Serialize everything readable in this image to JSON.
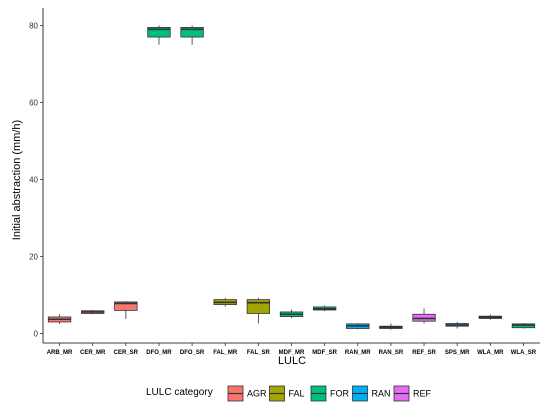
{
  "chart_data": {
    "type": "box",
    "xlabel": "LULC",
    "ylabel": "Initial abstraction (mm/h)",
    "ylim": [
      -3,
      84
    ],
    "y_ticks": [
      0,
      20,
      40,
      60,
      80
    ],
    "grid": false,
    "legend": {
      "title": "LULC category",
      "placement": "bottom",
      "entries": [
        {
          "name": "AGR",
          "color": "#F8766D"
        },
        {
          "name": "FAL",
          "color": "#A3A500"
        },
        {
          "name": "FOR",
          "color": "#00BF7D"
        },
        {
          "name": "RAN",
          "color": "#00B0F6"
        },
        {
          "name": "REF",
          "color": "#E76BF3"
        }
      ]
    },
    "categories": [
      "ARB_MR",
      "CER_MR",
      "CER_SR",
      "DFO_MR",
      "DFO_SR",
      "FAL_MR",
      "FAL_SR",
      "MDF_MR",
      "MDF_SR",
      "RAN_MR",
      "RAN_SR",
      "REF_SR",
      "SPS_MR",
      "WLA_MR",
      "WLA_SR"
    ],
    "boxes": [
      {
        "category": "ARB_MR",
        "group": "AGR",
        "min": 2.5,
        "q1": 3.0,
        "median": 3.7,
        "q3": 4.3,
        "max": 5.0
      },
      {
        "category": "CER_MR",
        "group": "AGR",
        "min": 5.0,
        "q1": 5.2,
        "median": 5.6,
        "q3": 5.9,
        "max": 6.1
      },
      {
        "category": "CER_SR",
        "group": "AGR",
        "min": 3.8,
        "q1": 6.0,
        "median": 7.8,
        "q3": 8.2,
        "max": 8.4
      },
      {
        "category": "DFO_MR",
        "group": "FOR",
        "min": 75.0,
        "q1": 77.0,
        "median": 79.0,
        "q3": 79.5,
        "max": 80.0
      },
      {
        "category": "DFO_SR",
        "group": "FOR",
        "min": 75.0,
        "q1": 77.0,
        "median": 79.0,
        "q3": 79.5,
        "max": 80.0
      },
      {
        "category": "FAL_MR",
        "group": "FAL",
        "min": 7.0,
        "q1": 7.5,
        "median": 8.1,
        "q3": 8.8,
        "max": 9.3
      },
      {
        "category": "FAL_SR",
        "group": "FAL",
        "min": 2.6,
        "q1": 5.2,
        "median": 8.0,
        "q3": 8.8,
        "max": 9.3
      },
      {
        "category": "MDF_MR",
        "group": "FOR",
        "min": 4.0,
        "q1": 4.4,
        "median": 5.0,
        "q3": 5.6,
        "max": 6.2
      },
      {
        "category": "MDF_SR",
        "group": "FOR",
        "min": 5.8,
        "q1": 6.1,
        "median": 6.4,
        "q3": 6.9,
        "max": 7.3
      },
      {
        "category": "RAN_MR",
        "group": "RAN",
        "min": 1.1,
        "q1": 1.3,
        "median": 2.0,
        "q3": 2.5,
        "max": 2.7
      },
      {
        "category": "RAN_SR",
        "group": "RAN",
        "min": 1.0,
        "q1": 1.3,
        "median": 1.6,
        "q3": 1.9,
        "max": 2.6
      },
      {
        "category": "REF_SR",
        "group": "REF",
        "min": 2.6,
        "q1": 3.2,
        "median": 3.9,
        "q3": 5.0,
        "max": 6.5
      },
      {
        "category": "SPS_MR",
        "group": "RAN",
        "min": 1.3,
        "q1": 1.9,
        "median": 2.2,
        "q3": 2.6,
        "max": 3.0
      },
      {
        "category": "WLA_MR",
        "group": "FOR",
        "min": 3.6,
        "q1": 3.9,
        "median": 4.2,
        "q3": 4.5,
        "max": 4.9
      },
      {
        "category": "WLA_SR",
        "group": "FOR",
        "min": 1.3,
        "q1": 1.5,
        "median": 2.2,
        "q3": 2.5,
        "max": 2.7
      }
    ]
  }
}
